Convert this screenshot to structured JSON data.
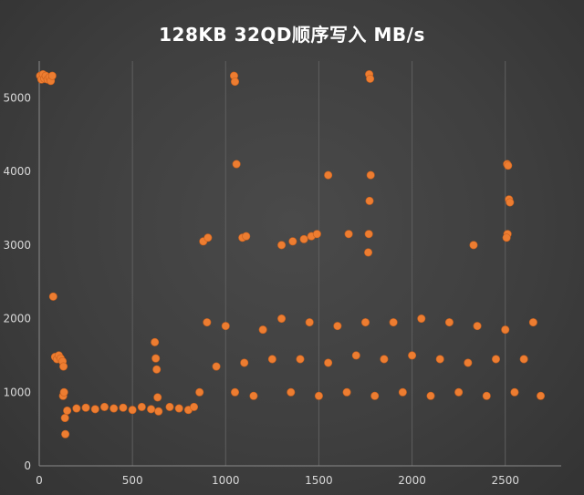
{
  "chart_data": {
    "type": "scatter",
    "title": "128KB 32QD顺序写入  MB/s",
    "xlabel": "",
    "ylabel": "",
    "xlim": [
      0,
      2800
    ],
    "ylim": [
      0,
      5500
    ],
    "x_ticks": [
      0,
      500,
      1000,
      1500,
      2000,
      2500
    ],
    "y_ticks": [
      0,
      1000,
      2000,
      3000,
      4000,
      5000
    ],
    "grid": "vertical",
    "legend": "none",
    "marker_color": "#ed7d31",
    "series": [
      {
        "points": [
          [
            5,
            5300
          ],
          [
            12,
            5250
          ],
          [
            20,
            5320
          ],
          [
            28,
            5260
          ],
          [
            35,
            5300
          ],
          [
            45,
            5250
          ],
          [
            55,
            5280
          ],
          [
            62,
            5230
          ],
          [
            70,
            5300
          ],
          [
            75,
            2300
          ],
          [
            85,
            1480
          ],
          [
            95,
            1450
          ],
          [
            105,
            1500
          ],
          [
            115,
            1460
          ],
          [
            125,
            1420
          ],
          [
            130,
            1350
          ],
          [
            128,
            950
          ],
          [
            133,
            1000
          ],
          [
            138,
            650
          ],
          [
            140,
            430
          ],
          [
            150,
            750
          ],
          [
            200,
            780
          ],
          [
            250,
            790
          ],
          [
            300,
            770
          ],
          [
            350,
            800
          ],
          [
            400,
            780
          ],
          [
            450,
            790
          ],
          [
            500,
            760
          ],
          [
            550,
            800
          ],
          [
            600,
            770
          ],
          [
            620,
            1680
          ],
          [
            625,
            1460
          ],
          [
            630,
            1310
          ],
          [
            635,
            930
          ],
          [
            640,
            740
          ],
          [
            700,
            800
          ],
          [
            750,
            780
          ],
          [
            800,
            760
          ],
          [
            830,
            800
          ],
          [
            860,
            1000
          ],
          [
            900,
            1950
          ],
          [
            950,
            1350
          ],
          [
            1000,
            1900
          ],
          [
            1050,
            1000
          ],
          [
            1100,
            1400
          ],
          [
            1150,
            950
          ],
          [
            1200,
            1850
          ],
          [
            1250,
            1450
          ],
          [
            1300,
            2000
          ],
          [
            1350,
            1000
          ],
          [
            1400,
            1450
          ],
          [
            1450,
            1950
          ],
          [
            1500,
            950
          ],
          [
            1550,
            1400
          ],
          [
            1600,
            1900
          ],
          [
            1650,
            1000
          ],
          [
            1700,
            1500
          ],
          [
            1750,
            1950
          ],
          [
            1800,
            950
          ],
          [
            1850,
            1450
          ],
          [
            1900,
            1950
          ],
          [
            1950,
            1000
          ],
          [
            2000,
            1500
          ],
          [
            2050,
            2000
          ],
          [
            2100,
            950
          ],
          [
            2150,
            1450
          ],
          [
            2200,
            1950
          ],
          [
            2250,
            1000
          ],
          [
            2300,
            1400
          ],
          [
            2350,
            1900
          ],
          [
            2400,
            950
          ],
          [
            2450,
            1450
          ],
          [
            2500,
            1850
          ],
          [
            2550,
            1000
          ],
          [
            2600,
            1450
          ],
          [
            2650,
            1950
          ],
          [
            2690,
            950
          ],
          [
            880,
            3050
          ],
          [
            905,
            3100
          ],
          [
            1045,
            5300
          ],
          [
            1050,
            5220
          ],
          [
            1058,
            4100
          ],
          [
            1090,
            3100
          ],
          [
            1110,
            3120
          ],
          [
            1300,
            3000
          ],
          [
            1360,
            3050
          ],
          [
            1420,
            3080
          ],
          [
            1460,
            3120
          ],
          [
            1490,
            3150
          ],
          [
            1550,
            3950
          ],
          [
            1660,
            3150
          ],
          [
            1770,
            5320
          ],
          [
            1775,
            5260
          ],
          [
            1778,
            3950
          ],
          [
            1772,
            3600
          ],
          [
            1768,
            3150
          ],
          [
            1765,
            2900
          ],
          [
            2330,
            3000
          ],
          [
            2510,
            4100
          ],
          [
            2515,
            4080
          ],
          [
            2520,
            3620
          ],
          [
            2525,
            3580
          ],
          [
            2512,
            3150
          ],
          [
            2507,
            3100
          ]
        ]
      }
    ]
  }
}
